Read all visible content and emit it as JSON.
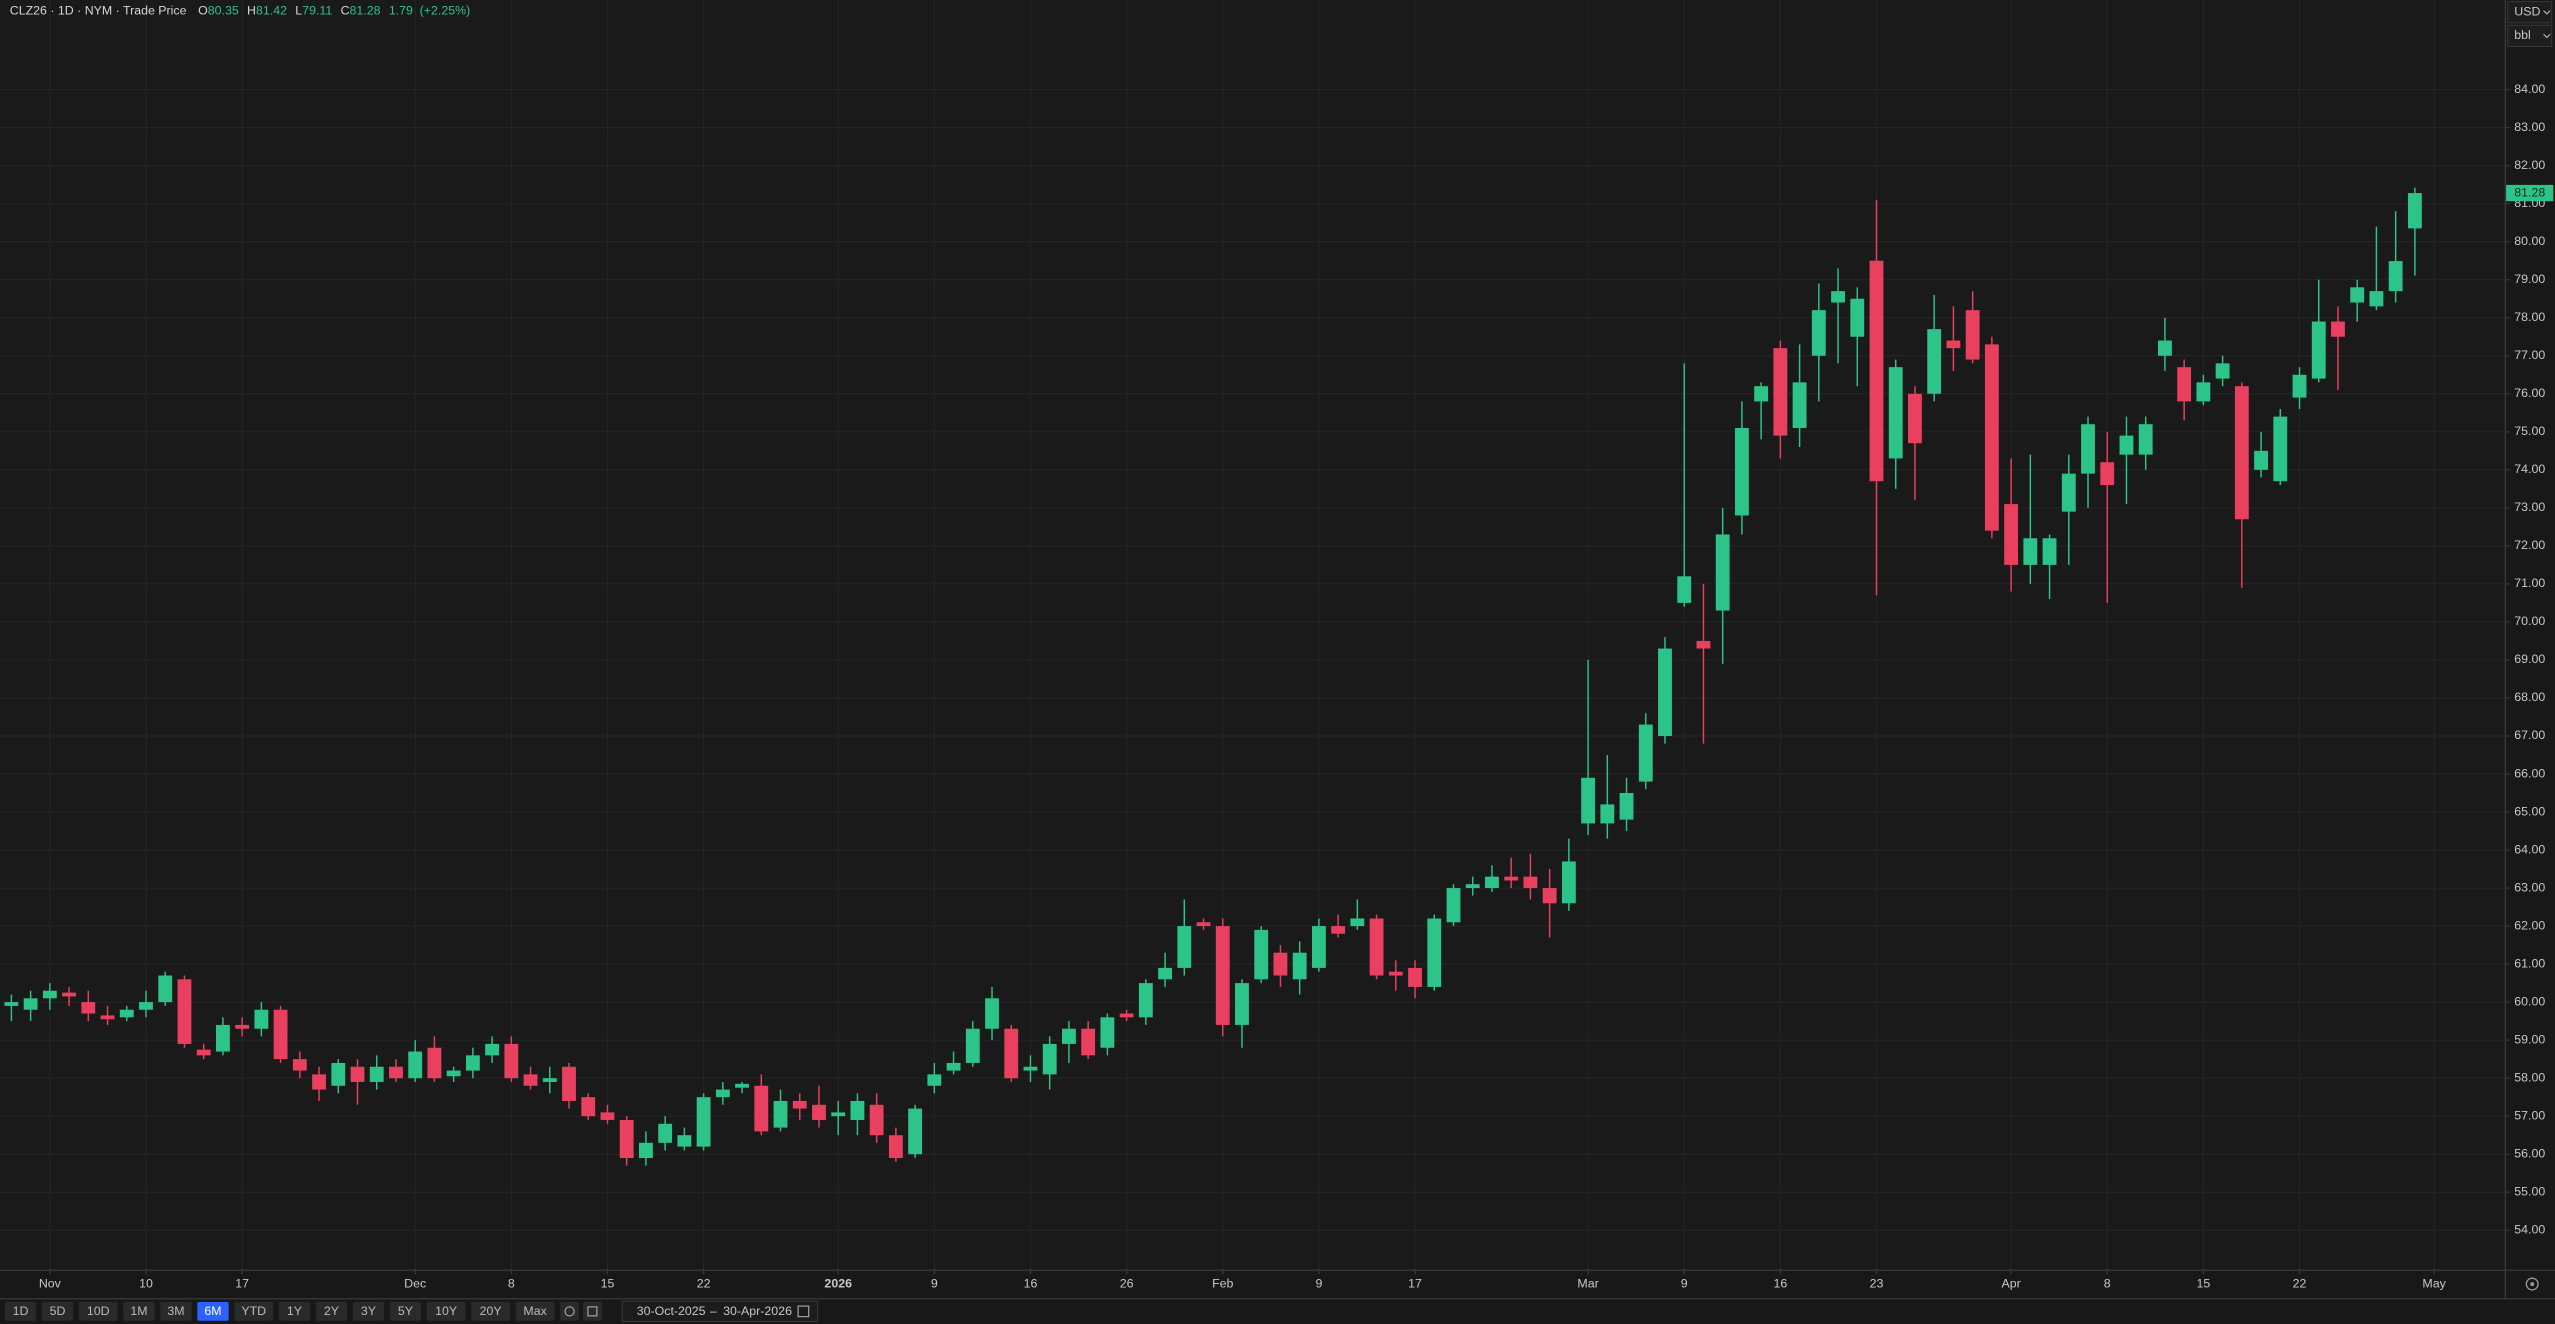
{
  "header": {
    "symbol_line": "CLZ26 · 1D · NYM · Trade Price",
    "o_label": "O",
    "h_label": "H",
    "l_label": "L",
    "c_label": "C",
    "change": 1.79,
    "change_pct": "(+2.25%)"
  },
  "axis_box": {
    "currency": "USD",
    "unit": "bbl"
  },
  "toolbar": {
    "ranges": [
      "1D",
      "5D",
      "10D",
      "1M",
      "3M",
      "6M",
      "YTD",
      "1Y",
      "2Y",
      "3Y",
      "5Y",
      "10Y",
      "20Y",
      "Max"
    ],
    "active": "6M",
    "date_from": "30-Oct-2025",
    "date_sep": "–",
    "date_to": "30-Apr-2026"
  },
  "chart_data": {
    "type": "candlestick",
    "up_color": "#2dc48a",
    "down_color": "#e8405e",
    "grid": true,
    "xlim": [
      -0.593,
      129.66
    ],
    "ylim": [
      52.97,
      86.357
    ],
    "xticks": [
      {
        "value": 2,
        "label": "Nov"
      },
      {
        "value": 7,
        "label": "10"
      },
      {
        "value": 12,
        "label": "17"
      },
      {
        "value": 21,
        "label": "Dec"
      },
      {
        "value": 26,
        "label": "8"
      },
      {
        "value": 31,
        "label": "15"
      },
      {
        "value": 36,
        "label": "22"
      },
      {
        "value": 43,
        "label": "2026"
      },
      {
        "value": 48,
        "label": "9"
      },
      {
        "value": 53,
        "label": "16"
      },
      {
        "value": 58,
        "label": "26"
      },
      {
        "value": 63,
        "label": "Feb"
      },
      {
        "value": 68,
        "label": "9"
      },
      {
        "value": 73,
        "label": "17"
      },
      {
        "value": 82,
        "label": "Mar"
      },
      {
        "value": 87,
        "label": "9"
      },
      {
        "value": 92,
        "label": "16"
      },
      {
        "value": 97,
        "label": "23"
      },
      {
        "value": 104,
        "label": "Apr"
      },
      {
        "value": 109,
        "label": "8"
      },
      {
        "value": 114,
        "label": "15"
      },
      {
        "value": 119,
        "label": "22"
      },
      {
        "value": 126,
        "label": "May"
      }
    ],
    "yticks": [
      {
        "value": 54,
        "label": "54.00"
      },
      {
        "value": 55,
        "label": "55.00"
      },
      {
        "value": 56,
        "label": "56.00"
      },
      {
        "value": 57,
        "label": "57.00"
      },
      {
        "value": 58,
        "label": "58.00"
      },
      {
        "value": 59,
        "label": "59.00"
      },
      {
        "value": 60,
        "label": "60.00"
      },
      {
        "value": 61,
        "label": "61.00"
      },
      {
        "value": 62,
        "label": "62.00"
      },
      {
        "value": 63,
        "label": "63.00"
      },
      {
        "value": 64,
        "label": "64.00"
      },
      {
        "value": 65,
        "label": "65.00"
      },
      {
        "value": 66,
        "label": "66.00"
      },
      {
        "value": 67,
        "label": "67.00"
      },
      {
        "value": 68,
        "label": "68.00"
      },
      {
        "value": 69,
        "label": "69.00"
      },
      {
        "value": 70,
        "label": "70.00"
      },
      {
        "value": 71,
        "label": "71.00"
      },
      {
        "value": 72,
        "label": "72.00"
      },
      {
        "value": 73,
        "label": "73.00"
      },
      {
        "value": 74,
        "label": "74.00"
      },
      {
        "value": 75,
        "label": "75.00"
      },
      {
        "value": 76,
        "label": "76.00"
      },
      {
        "value": 77,
        "label": "77.00"
      },
      {
        "value": 78,
        "label": "78.00"
      },
      {
        "value": 79,
        "label": "79.00"
      },
      {
        "value": 80,
        "label": "80.00"
      },
      {
        "value": 81,
        "label": "81.00"
      },
      {
        "value": 82,
        "label": "82.00"
      },
      {
        "value": 83,
        "label": "83.00"
      },
      {
        "value": 84,
        "label": "84.00"
      }
    ],
    "series": {
      "open": [
        59.9,
        59.8,
        60.1,
        60.25,
        60.0,
        59.65,
        59.6,
        59.8,
        60.0,
        60.6,
        58.75,
        58.7,
        59.4,
        59.3,
        59.8,
        58.5,
        58.1,
        57.8,
        58.3,
        57.9,
        58.3,
        58.0,
        58.8,
        58.05,
        58.2,
        58.6,
        58.9,
        58.1,
        57.9,
        58.3,
        57.5,
        57.1,
        56.9,
        55.9,
        56.3,
        56.2,
        56.2,
        57.5,
        57.75,
        57.8,
        56.7,
        57.4,
        57.3,
        57.0,
        56.9,
        57.3,
        56.5,
        56.0,
        57.8,
        58.2,
        58.4,
        59.3,
        59.3,
        58.2,
        58.1,
        58.9,
        59.3,
        58.8,
        59.7,
        59.6,
        60.6,
        60.9,
        62.1,
        62.0,
        59.4,
        60.6,
        61.3,
        60.6,
        60.9,
        62.0,
        62.0,
        62.2,
        60.8,
        60.9,
        60.4,
        62.1,
        63.0,
        63.0,
        63.3,
        63.3,
        63.0,
        62.6,
        64.7,
        64.7,
        64.8,
        65.8,
        67.0,
        70.5,
        69.5,
        70.3,
        72.8,
        75.8,
        77.2,
        75.1,
        77.0,
        78.4,
        77.5,
        79.5,
        74.3,
        76.0,
        76.0,
        77.4,
        78.2,
        77.3,
        73.1,
        71.5,
        71.5,
        72.9,
        73.9,
        74.2,
        74.4,
        74.4,
        77.0,
        76.7,
        75.8,
        76.4,
        76.2,
        74.0,
        73.7,
        75.9,
        76.4,
        77.9,
        78.4,
        78.3,
        78.7,
        80.35
      ],
      "high": [
        60.2,
        60.3,
        60.5,
        60.4,
        60.3,
        59.9,
        59.9,
        60.3,
        60.8,
        60.7,
        58.9,
        59.6,
        59.6,
        60.0,
        59.9,
        58.7,
        58.3,
        58.5,
        58.5,
        58.6,
        58.5,
        59.0,
        59.1,
        58.3,
        58.8,
        59.1,
        59.1,
        58.3,
        58.3,
        58.4,
        57.6,
        57.3,
        57.0,
        56.6,
        57.0,
        56.7,
        57.6,
        57.9,
        57.9,
        58.1,
        57.7,
        57.6,
        57.8,
        57.4,
        57.6,
        57.6,
        56.7,
        57.3,
        58.4,
        58.7,
        59.5,
        60.4,
        59.4,
        58.6,
        59.1,
        59.5,
        59.5,
        59.7,
        59.8,
        60.6,
        61.3,
        62.7,
        62.2,
        62.2,
        60.6,
        62.0,
        61.5,
        61.6,
        62.2,
        62.3,
        62.7,
        62.3,
        61.1,
        61.1,
        62.3,
        63.1,
        63.3,
        63.6,
        63.8,
        63.9,
        63.5,
        64.3,
        69.0,
        66.5,
        65.9,
        67.6,
        69.6,
        76.8,
        71.0,
        73.0,
        75.8,
        76.3,
        77.4,
        77.3,
        78.9,
        79.3,
        78.8,
        81.1,
        76.9,
        76.2,
        78.6,
        78.3,
        78.7,
        77.5,
        74.3,
        74.4,
        72.3,
        74.4,
        75.4,
        75.0,
        75.4,
        75.4,
        78.0,
        76.9,
        76.5,
        77.0,
        76.3,
        75.0,
        75.6,
        76.7,
        79.0,
        78.3,
        79.0,
        80.4,
        80.8,
        81.42
      ],
      "low": [
        59.5,
        59.5,
        59.8,
        59.9,
        59.5,
        59.4,
        59.5,
        59.6,
        59.9,
        58.8,
        58.5,
        58.6,
        59.1,
        59.1,
        58.4,
        58.0,
        57.4,
        57.6,
        57.3,
        57.7,
        57.9,
        57.9,
        57.9,
        57.9,
        58.0,
        58.4,
        57.9,
        57.7,
        57.6,
        57.2,
        56.9,
        56.8,
        55.7,
        55.7,
        56.1,
        56.1,
        56.1,
        57.3,
        57.6,
        56.5,
        56.6,
        56.9,
        56.7,
        56.5,
        56.5,
        56.3,
        55.8,
        55.9,
        57.6,
        58.1,
        58.3,
        59.0,
        57.9,
        57.9,
        57.7,
        58.4,
        58.5,
        58.6,
        59.5,
        59.4,
        60.4,
        60.7,
        61.9,
        59.1,
        58.8,
        60.5,
        60.4,
        60.2,
        60.8,
        61.7,
        61.9,
        60.6,
        60.3,
        60.1,
        60.3,
        62.0,
        62.8,
        62.9,
        63.0,
        62.7,
        61.7,
        62.4,
        64.4,
        64.3,
        64.5,
        65.6,
        66.8,
        70.4,
        66.8,
        68.9,
        72.3,
        74.8,
        74.3,
        74.6,
        75.8,
        76.8,
        76.2,
        70.7,
        73.5,
        73.2,
        75.8,
        76.6,
        76.8,
        72.2,
        70.8,
        71.0,
        70.6,
        71.5,
        73.0,
        70.5,
        73.1,
        74.0,
        76.6,
        75.3,
        75.7,
        76.2,
        70.9,
        73.8,
        73.6,
        75.6,
        76.3,
        76.1,
        77.9,
        78.2,
        78.4,
        79.11
      ],
      "close": [
        60.0,
        60.1,
        60.3,
        60.15,
        59.7,
        59.55,
        59.8,
        60.0,
        60.7,
        58.9,
        58.6,
        59.4,
        59.3,
        59.8,
        58.5,
        58.2,
        57.7,
        58.4,
        57.9,
        58.3,
        58.0,
        58.7,
        58.0,
        58.2,
        58.6,
        58.9,
        58.0,
        57.8,
        58.0,
        57.4,
        57.0,
        56.9,
        55.9,
        56.3,
        56.8,
        56.5,
        57.5,
        57.7,
        57.85,
        56.6,
        57.4,
        57.2,
        56.9,
        57.1,
        57.4,
        56.5,
        55.9,
        57.2,
        58.1,
        58.4,
        59.3,
        60.1,
        58.0,
        58.3,
        58.9,
        59.3,
        58.6,
        59.6,
        59.6,
        60.5,
        60.9,
        62.0,
        62.0,
        59.4,
        60.5,
        61.9,
        60.7,
        61.3,
        62.0,
        61.8,
        62.2,
        60.7,
        60.7,
        60.4,
        62.2,
        63.0,
        63.1,
        63.3,
        63.2,
        63.0,
        62.6,
        63.7,
        65.9,
        65.2,
        65.5,
        67.3,
        69.3,
        71.2,
        69.3,
        72.3,
        75.1,
        76.2,
        74.9,
        76.3,
        78.2,
        78.7,
        78.5,
        73.7,
        76.7,
        74.7,
        77.7,
        77.2,
        76.9,
        72.4,
        71.5,
        72.2,
        72.2,
        73.9,
        75.2,
        73.6,
        74.9,
        75.2,
        77.4,
        75.8,
        76.3,
        76.8,
        72.7,
        74.5,
        75.4,
        76.5,
        77.9,
        77.5,
        78.8,
        78.7,
        79.49,
        81.28
      ]
    }
  }
}
